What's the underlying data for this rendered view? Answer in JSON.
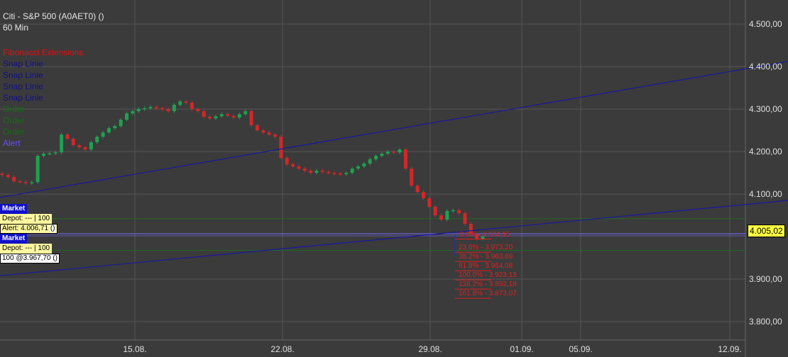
{
  "header": {
    "title": "Citi - S&P 500 (A0AET0) ()",
    "interval": "60 Min"
  },
  "legend": [
    {
      "label": "Fibonacci Extensions",
      "color": "#e01010"
    },
    {
      "label": "Snap Linie",
      "color": "#10108a"
    },
    {
      "label": "Snap Linie",
      "color": "#10108a"
    },
    {
      "label": "Snap Linie",
      "color": "#10108a"
    },
    {
      "label": "Snap Linie",
      "color": "#10108a"
    },
    {
      "label": "Order",
      "color": "#1a6a1a"
    },
    {
      "label": "Order",
      "color": "#1a6a1a"
    },
    {
      "label": "Order",
      "color": "#1a6a1a"
    },
    {
      "label": "Alert",
      "color": "#6a4cff"
    }
  ],
  "orders": {
    "market1": "Market",
    "depot1": "Depot: --- | 100",
    "alert": "Alert: 4.006,71",
    "alert_suffix": "()",
    "market2": "Market",
    "depot2": "Depot: --- | 100",
    "order": "100 @3.967,70 ()"
  },
  "current_price": "4.005,02",
  "colors": {
    "up": "#1fa050",
    "down": "#d02828",
    "background": "#3b3b3b",
    "grid": "#555555",
    "trendline": "#1818a0",
    "alert_line": "#7a6cff",
    "order_line": "#1f6a1f",
    "fib": "#e02020"
  },
  "chart_data": {
    "type": "candlestick",
    "yticks": [
      "4.500,00",
      "4.400,00",
      "4.300,00",
      "4.200,00",
      "4.100,00",
      "3.900,00",
      "3.800,00"
    ],
    "ytick_values": [
      4500,
      4400,
      4300,
      4200,
      4100,
      3900,
      3800
    ],
    "ylim": [
      3770,
      4555
    ],
    "xticks": [
      "15.08.",
      "22.08.",
      "29.08.",
      "01.09.",
      "05.09.",
      "12.09."
    ],
    "closes": [
      4145,
      4140,
      4130,
      4128,
      4126,
      4128,
      4190,
      4195,
      4196,
      4198,
      4240,
      4230,
      4215,
      4210,
      4205,
      4222,
      4235,
      4245,
      4255,
      4260,
      4275,
      4290,
      4295,
      4300,
      4302,
      4305,
      4302,
      4300,
      4295,
      4310,
      4318,
      4315,
      4300,
      4295,
      4282,
      4278,
      4283,
      4288,
      4284,
      4280,
      4288,
      4295,
      4262,
      4250,
      4245,
      4240,
      4235,
      4185,
      4170,
      4165,
      4160,
      4155,
      4150,
      4155,
      4152,
      4150,
      4148,
      4147,
      4150,
      4160,
      4165,
      4172,
      4182,
      4190,
      4195,
      4200,
      4198,
      4205,
      4160,
      4120,
      4105,
      4090,
      4070,
      4050,
      4040,
      4060,
      4062,
      4055,
      4030,
      4005,
      3995,
      4000
    ],
    "trendlines": [
      {
        "from": 4092,
        "to": 4412
      },
      {
        "from": 3908,
        "to": 4085
      }
    ],
    "alert_level": 4006.71,
    "order_levels": [
      4042,
      3967.7
    ],
    "fibonacci": [
      {
        "label": "0.0% - 4.004,15",
        "value": 4004.15
      },
      {
        "label": "23.6% - 3.973,20",
        "value": 3973.2
      },
      {
        "label": "38.2% - 3.963,69",
        "value": 3963.69
      },
      {
        "label": "61.8% - 3.954,08",
        "value": 3954.08
      },
      {
        "label": "100.0% - 3.923,13",
        "value": 3923.13
      },
      {
        "label": "138.2% - 3.892,18",
        "value": 3892.18
      },
      {
        "label": "161.8% - 3.873,07",
        "value": 3873.07
      }
    ]
  }
}
